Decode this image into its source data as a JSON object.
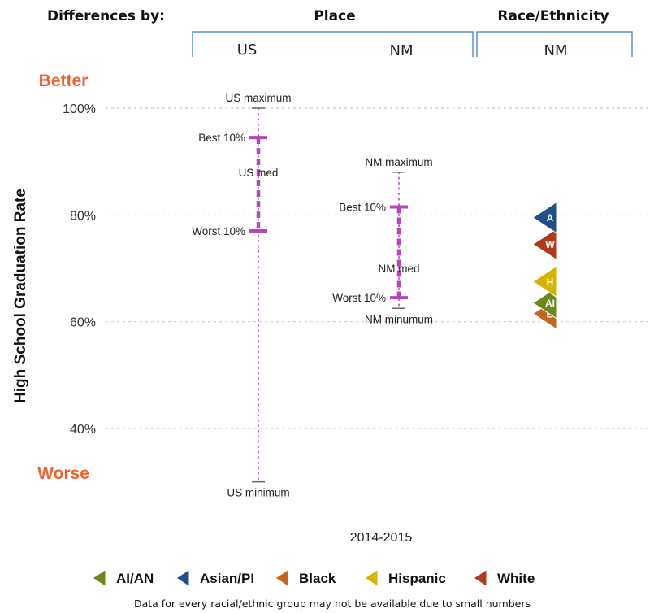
{
  "header": {
    "differences_by": "Differences by:",
    "place": "Place",
    "race_ethnicity": "Race/Ethnicity",
    "group_us": "US",
    "group_nm_place": "NM",
    "group_nm_race": "NM"
  },
  "labels": {
    "better": "Better",
    "worse": "Worse",
    "footnote": "Data for every racial/ethnic group may not be available due to small numbers"
  },
  "colors": {
    "better_worse": "#f0622d",
    "range_bar": "#b447b5",
    "grid": "#c9c9c9",
    "bracket": "#5b8fc9"
  },
  "chart_data": {
    "type": "range",
    "ylabel": "High School Graduation Rate",
    "xlabel": "2014-2015",
    "yticks": [
      "40%",
      "60%",
      "80%",
      "100%"
    ],
    "ytick_values": [
      40,
      60,
      80,
      100
    ],
    "ylim": [
      30,
      100
    ],
    "grid": true,
    "ranges": [
      {
        "group": "US",
        "max": 100,
        "best10": 94.5,
        "median": 88,
        "worst10": 77,
        "min": 30,
        "max_label": "US maximum",
        "best_label": "Best 10%",
        "median_label": "US med",
        "worst_label": "Worst 10%",
        "min_label": "US minimum"
      },
      {
        "group": "NM",
        "max": 88,
        "best10": 81.5,
        "median": 70,
        "worst10": 64.5,
        "min": 62.5,
        "max_label": "NM maximum",
        "best_label": "Best 10%",
        "median_label": "NM med",
        "worst_label": "Worst 10%",
        "min_label": "NM minumum"
      }
    ],
    "race_markers": [
      {
        "key": "A",
        "name": "Asian/PI",
        "value": 79.5,
        "color": "#1f4e8c"
      },
      {
        "key": "W",
        "name": "White",
        "value": 74.5,
        "color": "#b03a1a"
      },
      {
        "key": "H",
        "name": "Hispanic",
        "value": 67.5,
        "color": "#d4b400"
      },
      {
        "key": "AI",
        "name": "AI/AN",
        "value": 63.5,
        "color": "#6b8a1e"
      },
      {
        "key": "B",
        "name": "Black",
        "value": 61.5,
        "color": "#c8651b"
      }
    ],
    "legend": [
      {
        "key": "AI",
        "label": "AI/AN",
        "color": "#6b8a1e"
      },
      {
        "key": "A",
        "label": "Asian/PI",
        "color": "#1f4e8c"
      },
      {
        "key": "B",
        "label": "Black",
        "color": "#c8651b"
      },
      {
        "key": "H",
        "label": "Hispanic",
        "color": "#d4b400"
      },
      {
        "key": "W",
        "label": "White",
        "color": "#b03a1a"
      }
    ],
    "legend_position": "bottom"
  }
}
